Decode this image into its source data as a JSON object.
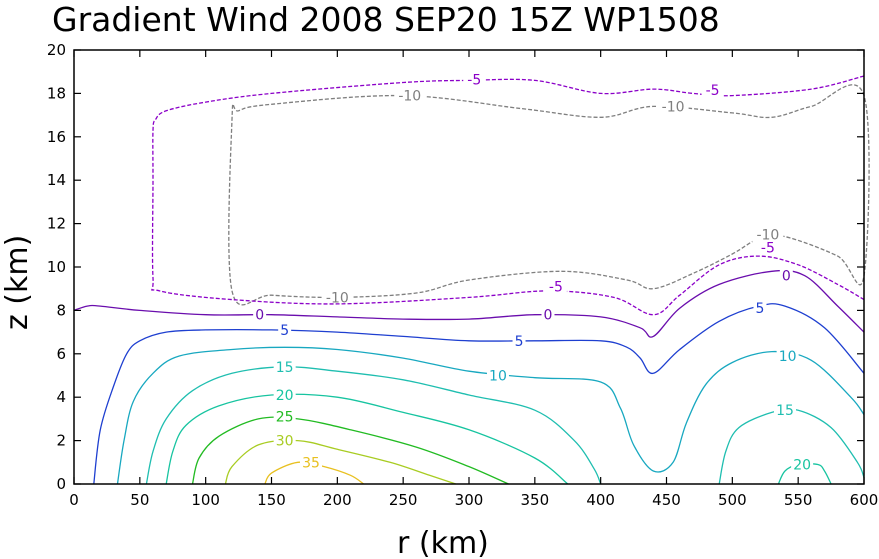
{
  "chart_data": {
    "type": "contour",
    "title": "Gradient Wind 2008 SEP20 15Z  WP1508",
    "xlabel": "r (km)",
    "ylabel": "z (km)",
    "xlim": [
      0,
      600
    ],
    "ylim": [
      0,
      20
    ],
    "x_ticks": [
      0,
      50,
      100,
      150,
      200,
      250,
      300,
      350,
      400,
      450,
      500,
      550,
      600
    ],
    "y_ticks": [
      0,
      2,
      4,
      6,
      8,
      10,
      12,
      14,
      16,
      18,
      20
    ],
    "contours": [
      {
        "level": "-10",
        "color": "#7f7f7f",
        "dashed": true,
        "closed": true,
        "points": [
          [
            120,
            8.9
          ],
          [
            150,
            8.7
          ],
          [
            200,
            8.6
          ],
          [
            260,
            8.8
          ],
          [
            300,
            9.4
          ],
          [
            370,
            9.8
          ],
          [
            420,
            9.4
          ],
          [
            440,
            9.0
          ],
          [
            470,
            9.7
          ],
          [
            500,
            10.6
          ],
          [
            520,
            11.3
          ],
          [
            540,
            11.4
          ],
          [
            580,
            10.5
          ],
          [
            600,
            9.6
          ],
          [
            600,
            17.9
          ],
          [
            560,
            17.4
          ],
          [
            530,
            16.9
          ],
          [
            500,
            17.1
          ],
          [
            440,
            17.4
          ],
          [
            400,
            16.9
          ],
          [
            340,
            17.3
          ],
          [
            250,
            17.9
          ],
          [
            150,
            17.5
          ],
          [
            125,
            17.2
          ],
          [
            120,
            16.8
          ]
        ],
        "labels": [
          [
            200,
            8.6
          ],
          [
            455,
            17.4
          ],
          [
            527,
            11.5
          ],
          [
            255,
            17.9
          ]
        ]
      },
      {
        "level": "-5",
        "color": "#8b00c8",
        "dashed": true,
        "closed": false,
        "points": [
          [
            600,
            8.5
          ],
          [
            580,
            9.2
          ],
          [
            550,
            10.1
          ],
          [
            520,
            10.5
          ],
          [
            490,
            10.1
          ],
          [
            460,
            8.7
          ],
          [
            440,
            7.8
          ],
          [
            410,
            8.6
          ],
          [
            360,
            8.9
          ],
          [
            300,
            8.6
          ],
          [
            200,
            8.3
          ],
          [
            120,
            8.5
          ],
          [
            65,
            8.9
          ],
          [
            60,
            9.5
          ],
          [
            60,
            14
          ],
          [
            60,
            16.3
          ],
          [
            62,
            16.8
          ],
          [
            70,
            17.2
          ],
          [
            100,
            17.6
          ],
          [
            150,
            18.0
          ],
          [
            250,
            18.5
          ],
          [
            300,
            18.6
          ],
          [
            350,
            18.6
          ],
          [
            400,
            18.0
          ],
          [
            440,
            18.2
          ],
          [
            470,
            18.0
          ],
          [
            500,
            17.9
          ],
          [
            560,
            18.2
          ],
          [
            600,
            18.8
          ]
        ],
        "labels": [
          [
            304,
            18.65
          ],
          [
            485,
            18.15
          ],
          [
            366,
            9.1
          ],
          [
            527,
            10.9
          ]
        ]
      },
      {
        "level": "0",
        "color": "#6a0dad",
        "dashed": false,
        "closed": false,
        "points": [
          [
            0,
            8.0
          ],
          [
            10,
            8.2
          ],
          [
            20,
            8.2
          ],
          [
            50,
            8.0
          ],
          [
            100,
            7.8
          ],
          [
            150,
            7.8
          ],
          [
            200,
            7.7
          ],
          [
            250,
            7.6
          ],
          [
            300,
            7.6
          ],
          [
            350,
            7.8
          ],
          [
            400,
            7.7
          ],
          [
            430,
            7.2
          ],
          [
            440,
            6.8
          ],
          [
            460,
            8.1
          ],
          [
            490,
            9.2
          ],
          [
            530,
            9.8
          ],
          [
            555,
            9.6
          ],
          [
            580,
            8.2
          ],
          [
            600,
            7.0
          ]
        ],
        "labels": [
          [
            141,
            7.8
          ],
          [
            360,
            7.8
          ],
          [
            541,
            9.6
          ]
        ]
      },
      {
        "level": "5",
        "color": "#1e3fd0",
        "dashed": false,
        "closed": false,
        "points": [
          [
            15,
            0
          ],
          [
            20,
            2.5
          ],
          [
            30,
            4.5
          ],
          [
            40,
            6.0
          ],
          [
            50,
            6.6
          ],
          [
            70,
            7.0
          ],
          [
            100,
            7.1
          ],
          [
            150,
            7.1
          ],
          [
            200,
            7.0
          ],
          [
            250,
            6.8
          ],
          [
            300,
            6.6
          ],
          [
            350,
            6.6
          ],
          [
            400,
            6.6
          ],
          [
            420,
            6.3
          ],
          [
            430,
            5.8
          ],
          [
            440,
            5.1
          ],
          [
            460,
            6.2
          ],
          [
            490,
            7.5
          ],
          [
            520,
            8.2
          ],
          [
            540,
            8.2
          ],
          [
            570,
            7.2
          ],
          [
            600,
            5.1
          ]
        ],
        "labels": [
          [
            160,
            7.1
          ],
          [
            338,
            6.6
          ],
          [
            521,
            8.1
          ]
        ]
      },
      {
        "level": "10",
        "color": "#18a8c0",
        "dashed": false,
        "closed": false,
        "points": [
          [
            33,
            0
          ],
          [
            38,
            2
          ],
          [
            45,
            3.8
          ],
          [
            60,
            5.1
          ],
          [
            80,
            5.9
          ],
          [
            120,
            6.2
          ],
          [
            160,
            6.3
          ],
          [
            200,
            6.2
          ],
          [
            250,
            5.8
          ],
          [
            300,
            5.2
          ],
          [
            350,
            4.9
          ],
          [
            400,
            4.7
          ],
          [
            415,
            3.5
          ],
          [
            425,
            1.8
          ],
          [
            440,
            0.6
          ],
          [
            455,
            1.0
          ],
          [
            465,
            2.8
          ],
          [
            480,
            4.6
          ],
          [
            500,
            5.6
          ],
          [
            530,
            6.1
          ],
          [
            560,
            5.7
          ],
          [
            590,
            4.0
          ],
          [
            600,
            3.2
          ]
        ],
        "labels": [
          [
            322,
            5.0
          ],
          [
            542,
            5.9
          ]
        ]
      },
      {
        "level": "15",
        "color": "#1fbeb0",
        "dashed": false,
        "closed": false,
        "points": [
          [
            55,
            0
          ],
          [
            60,
            1.5
          ],
          [
            70,
            3.0
          ],
          [
            90,
            4.3
          ],
          [
            120,
            5.1
          ],
          [
            160,
            5.4
          ],
          [
            200,
            5.2
          ],
          [
            250,
            4.8
          ],
          [
            300,
            4.1
          ],
          [
            350,
            3.4
          ],
          [
            380,
            2.0
          ],
          [
            395,
            0.7
          ],
          [
            400,
            0
          ]
        ],
        "labels": [
          [
            160,
            5.4
          ]
        ]
      },
      {
        "level": "15",
        "color": "#1fbeb0",
        "dashed": false,
        "closed": false,
        "points": [
          [
            490,
            0
          ],
          [
            495,
            1.5
          ],
          [
            505,
            2.6
          ],
          [
            530,
            3.3
          ],
          [
            550,
            3.4
          ],
          [
            575,
            2.6
          ],
          [
            595,
            1.0
          ],
          [
            600,
            0.3
          ]
        ],
        "labels": [
          [
            540,
            3.4
          ]
        ]
      },
      {
        "level": "20",
        "color": "#17c4a0",
        "dashed": false,
        "closed": false,
        "points": [
          [
            70,
            0
          ],
          [
            75,
            1.5
          ],
          [
            85,
            2.7
          ],
          [
            110,
            3.6
          ],
          [
            150,
            4.1
          ],
          [
            200,
            4.0
          ],
          [
            250,
            3.3
          ],
          [
            300,
            2.5
          ],
          [
            350,
            1.2
          ],
          [
            375,
            0
          ]
        ],
        "labels": [
          [
            160,
            4.1
          ]
        ]
      },
      {
        "level": "20",
        "color": "#17c4a0",
        "dashed": false,
        "closed": false,
        "points": [
          [
            535,
            0
          ],
          [
            540,
            0.6
          ],
          [
            550,
            0.9
          ],
          [
            565,
            0.9
          ],
          [
            570,
            0.6
          ],
          [
            575,
            0
          ]
        ],
        "labels": [
          [
            553,
            0.9
          ]
        ]
      },
      {
        "level": "25",
        "color": "#22bb22",
        "dashed": false,
        "closed": false,
        "points": [
          [
            90,
            0
          ],
          [
            95,
            1.2
          ],
          [
            110,
            2.2
          ],
          [
            140,
            3.0
          ],
          [
            170,
            3.0
          ],
          [
            210,
            2.5
          ],
          [
            260,
            1.7
          ],
          [
            300,
            0.8
          ],
          [
            330,
            0
          ]
        ],
        "labels": [
          [
            160,
            3.1
          ]
        ]
      },
      {
        "level": "30",
        "color": "#a8cc22",
        "dashed": false,
        "closed": false,
        "points": [
          [
            115,
            0
          ],
          [
            120,
            0.8
          ],
          [
            140,
            1.8
          ],
          [
            170,
            2.0
          ],
          [
            200,
            1.6
          ],
          [
            240,
            1.0
          ],
          [
            270,
            0.4
          ],
          [
            290,
            0
          ]
        ],
        "labels": [
          [
            160,
            2.0
          ]
        ]
      },
      {
        "level": "35",
        "color": "#e8c020",
        "dashed": false,
        "closed": false,
        "points": [
          [
            145,
            0
          ],
          [
            150,
            0.5
          ],
          [
            170,
            1.0
          ],
          [
            190,
            0.8
          ],
          [
            210,
            0.4
          ],
          [
            220,
            0
          ]
        ],
        "labels": [
          [
            180,
            1.0
          ]
        ]
      }
    ]
  },
  "colors": {
    "frame": "#000000",
    "background": "#ffffff"
  }
}
